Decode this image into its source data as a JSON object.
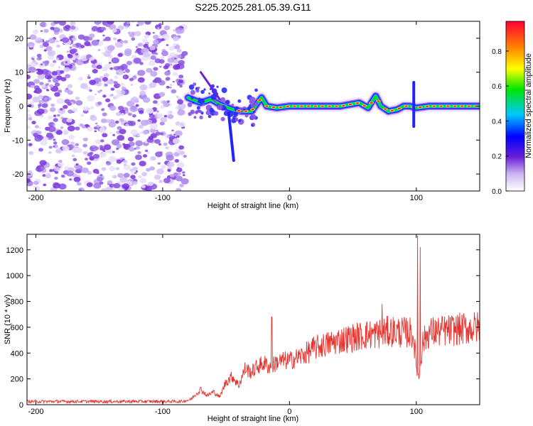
{
  "title": "S225.2025.281.05.39.G11",
  "chart_data": [
    {
      "type": "heatmap",
      "xlabel": "Height of straight line (km)",
      "ylabel": "Frequency (Hz)",
      "xlim": [
        -207,
        150
      ],
      "ylim": [
        -25,
        25
      ],
      "xticks": [
        -200,
        -100,
        0,
        100
      ],
      "yticks": [
        -20,
        -10,
        0,
        10,
        20
      ],
      "colorbar": {
        "label": "Normalized spectral amplitude",
        "range": [
          0,
          0.97
        ],
        "ticks": [
          0.0,
          0.2,
          0.4,
          0.6,
          0.8
        ]
      },
      "description_ridge": [
        [
          -80,
          2.5
        ],
        [
          -70,
          1.0
        ],
        [
          -62,
          2.0
        ],
        [
          -55,
          0.5
        ],
        [
          -45,
          -1.0
        ],
        [
          -38,
          -1.5
        ],
        [
          -30,
          -1.5
        ],
        [
          -22,
          2.5
        ],
        [
          -18,
          0.0
        ],
        [
          -10,
          -0.5
        ],
        [
          0,
          0.0
        ],
        [
          20,
          0.0
        ],
        [
          40,
          0.0
        ],
        [
          55,
          1.0
        ],
        [
          62,
          -0.5
        ],
        [
          68,
          3.0
        ],
        [
          72,
          0.0
        ],
        [
          78,
          -1.5
        ],
        [
          85,
          -1.0
        ],
        [
          90,
          0.0
        ],
        [
          95,
          0.0
        ],
        [
          100,
          -0.5
        ],
        [
          110,
          0.0
        ],
        [
          130,
          0.0
        ],
        [
          150,
          0.0
        ]
      ],
      "noise_extent": [
        -207,
        -82
      ]
    },
    {
      "type": "line",
      "xlabel": "Height of straight line (km)",
      "ylabel": "SNR (10 * v/v)",
      "xlim": [
        -207,
        150
      ],
      "ylim": [
        0,
        1320
      ],
      "xticks": [
        -200,
        -100,
        0,
        100
      ],
      "yticks": [
        0,
        200,
        400,
        600,
        800,
        1000,
        1200
      ],
      "series": [
        {
          "name": "SNR",
          "color": "#e8332f",
          "x": [
            -207,
            -180,
            -150,
            -120,
            -100,
            -85,
            -78,
            -70,
            -65,
            -60,
            -55,
            -50,
            -45,
            -40,
            -35,
            -30,
            -25,
            -20,
            -15,
            -10,
            -5,
            0,
            10,
            20,
            30,
            40,
            50,
            60,
            70,
            75,
            80,
            90,
            95,
            98,
            100,
            102,
            105,
            110,
            120,
            130,
            140,
            150
          ],
          "y": [
            25,
            25,
            25,
            25,
            25,
            25,
            40,
            120,
            70,
            100,
            60,
            180,
            220,
            150,
            280,
            250,
            300,
            320,
            290,
            330,
            340,
            340,
            380,
            440,
            470,
            500,
            520,
            540,
            550,
            560,
            570,
            560,
            560,
            520,
            300,
            200,
            480,
            560,
            570,
            580,
            590,
            600
          ],
          "spikes": [
            [
              -14,
              680
            ],
            [
              73,
              780
            ],
            [
              101,
              1310
            ],
            [
              103,
              1220
            ]
          ]
        }
      ]
    }
  ]
}
